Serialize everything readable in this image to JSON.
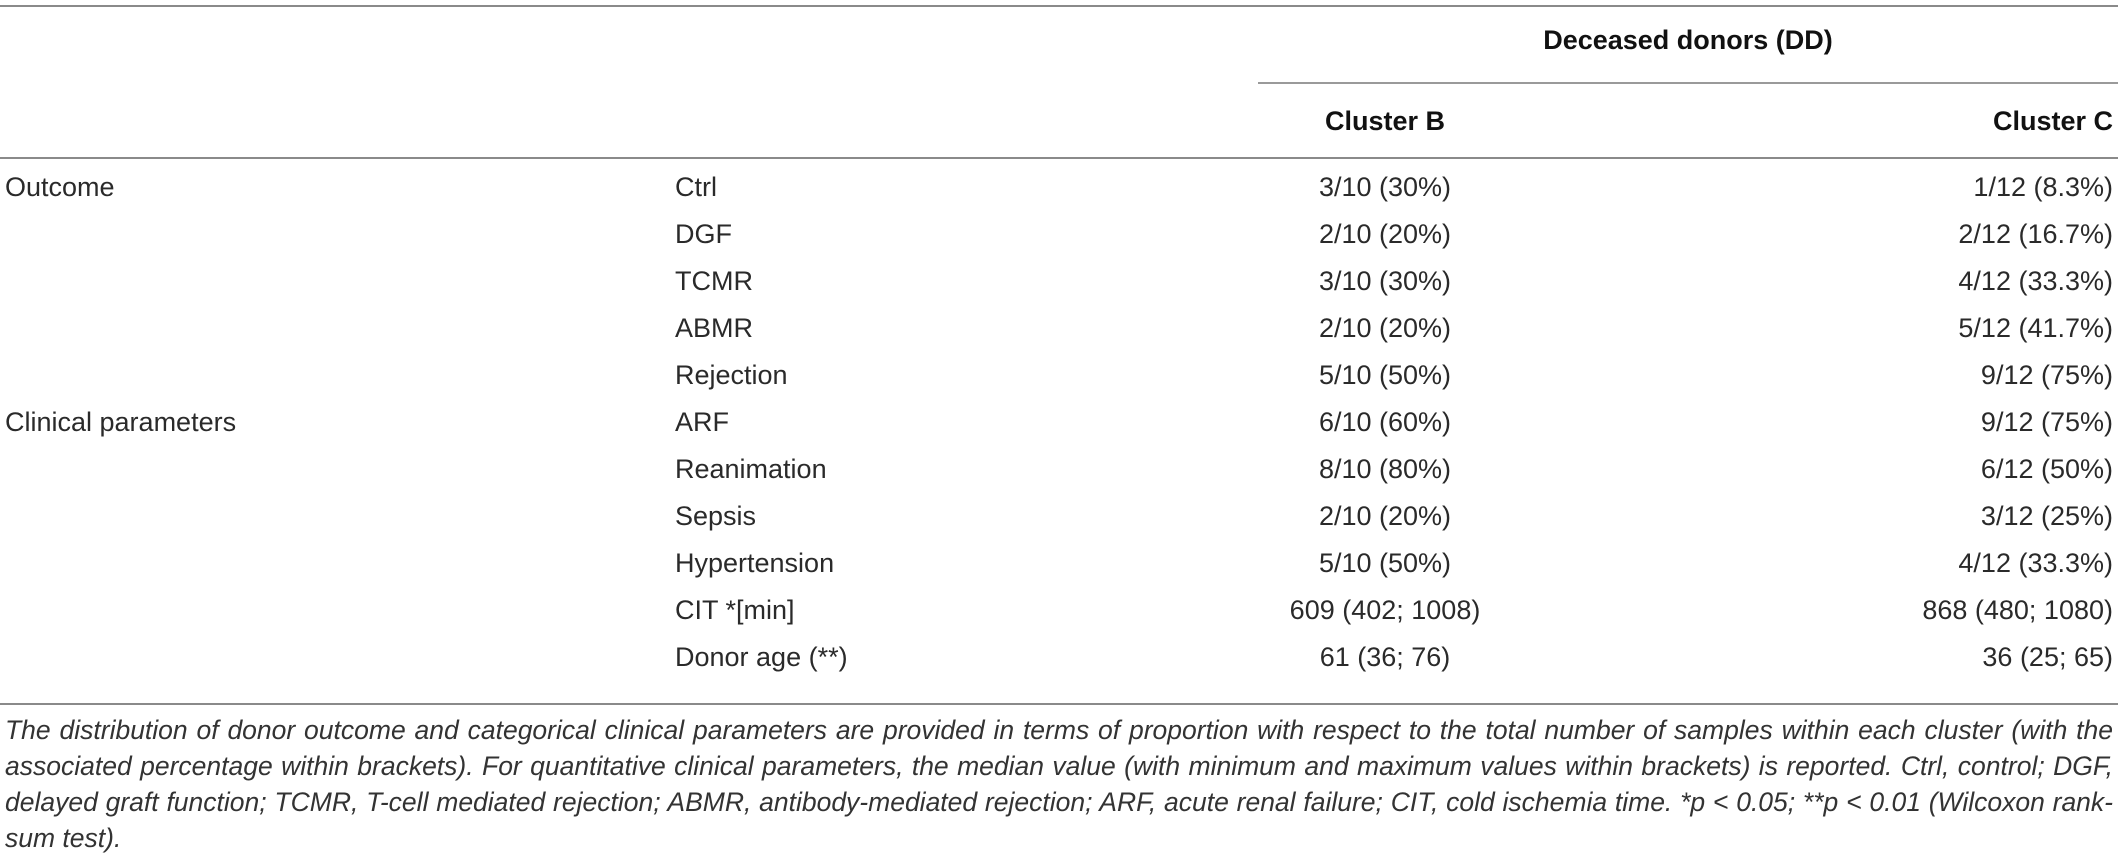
{
  "table": {
    "group_header": "Deceased donors (DD)",
    "columns": [
      "Cluster B",
      "Cluster C"
    ],
    "rows": [
      {
        "section": "Outcome",
        "parameter": "Ctrl",
        "cluster_b": "3/10 (30%)",
        "cluster_c": "1/12 (8.3%)"
      },
      {
        "section": "",
        "parameter": "DGF",
        "cluster_b": "2/10 (20%)",
        "cluster_c": "2/12 (16.7%)"
      },
      {
        "section": "",
        "parameter": "TCMR",
        "cluster_b": "3/10 (30%)",
        "cluster_c": "4/12 (33.3%)"
      },
      {
        "section": "",
        "parameter": "ABMR",
        "cluster_b": "2/10 (20%)",
        "cluster_c": "5/12 (41.7%)"
      },
      {
        "section": "",
        "parameter": "Rejection",
        "cluster_b": "5/10 (50%)",
        "cluster_c": "9/12 (75%)"
      },
      {
        "section": "Clinical parameters",
        "parameter": "ARF",
        "cluster_b": "6/10 (60%)",
        "cluster_c": "9/12 (75%)"
      },
      {
        "section": "",
        "parameter": "Reanimation",
        "cluster_b": "8/10 (80%)",
        "cluster_c": "6/12 (50%)"
      },
      {
        "section": "",
        "parameter": "Sepsis",
        "cluster_b": "2/10 (20%)",
        "cluster_c": "3/12 (25%)"
      },
      {
        "section": "",
        "parameter": "Hypertension",
        "cluster_b": "5/10 (50%)",
        "cluster_c": "4/12 (33.3%)"
      },
      {
        "section": "",
        "parameter": "CIT *[min]",
        "cluster_b": "609 (402; 1008)",
        "cluster_c": "868 (480; 1080)"
      },
      {
        "section": "",
        "parameter": "Donor age (**)",
        "cluster_b": "61 (36; 76)",
        "cluster_c": "36 (25; 65)"
      }
    ]
  },
  "footnote": "The distribution of donor outcome and categorical clinical parameters are provided in terms of proportion with respect to the total number of samples within each cluster (with the associated percentage within brackets). For quantitative clinical parameters, the median value (with minimum and maximum values within brackets) is reported. Ctrl, control; DGF, delayed graft function; TCMR, T-cell mediated rejection; ABMR, antibody-mediated rejection; ARF, acute renal failure; CIT, cold ischemia time. *p < 0.05; **p < 0.01 (Wilcoxon rank-sum test)."
}
